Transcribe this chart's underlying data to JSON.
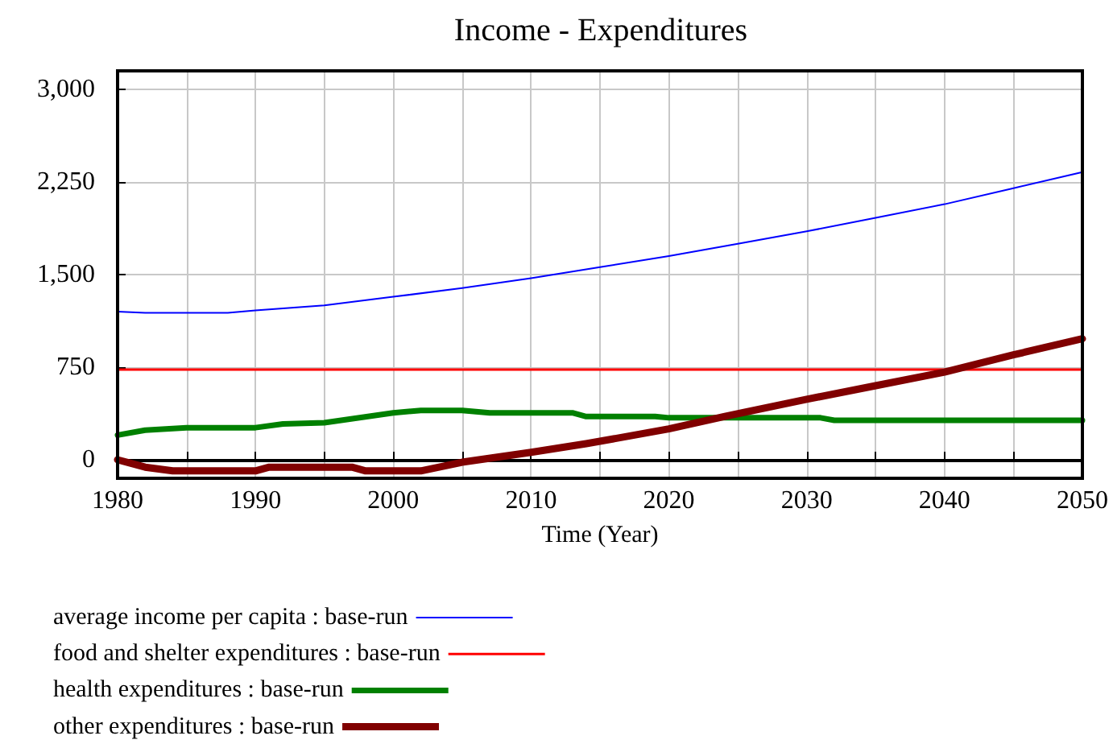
{
  "chart_data": {
    "type": "line",
    "title": "Income - Expenditures",
    "xlabel": "Time (Year)",
    "xlim": [
      1980,
      2050
    ],
    "ylim": [
      -150,
      3150
    ],
    "xticks": [
      1980,
      {
        "value": 1985,
        "label": null
      },
      1990,
      {
        "value": 1995,
        "label": null
      },
      2000,
      {
        "value": 2005,
        "label": null
      },
      2010,
      {
        "value": 2015,
        "label": null
      },
      2020,
      {
        "value": 2025,
        "label": null
      },
      2030,
      {
        "value": 2035,
        "label": null
      },
      2040,
      {
        "value": 2045,
        "label": null
      },
      2050
    ],
    "yticks": [
      0,
      750,
      {
        "value": 1500,
        "label": "1,500"
      },
      {
        "value": 2250,
        "label": "2,250"
      },
      {
        "value": 3000,
        "label": "3,000"
      }
    ],
    "grid": true,
    "legend": "bottom",
    "marker": "none",
    "line_style": "solid",
    "series": [
      {
        "name": "average income per capita : base-run",
        "color": "#0000ff",
        "x": [
          1980,
          1982,
          1985,
          1988,
          1990,
          1995,
          2000,
          2005,
          2010,
          2015,
          2020,
          2025,
          2030,
          2035,
          2040,
          2045,
          2050
        ],
        "values": [
          1200,
          1190,
          1190,
          1190,
          1210,
          1250,
          1320,
          1390,
          1470,
          1560,
          1650,
          1750,
          1850,
          1960,
          2070,
          2200,
          2330
        ]
      },
      {
        "name": "food and shelter expenditures : base-run",
        "color": "#ff0000",
        "x": [
          1980,
          2050
        ],
        "values": [
          730,
          730
        ]
      },
      {
        "name": "health expenditures : base-run",
        "color": "#008000",
        "x": [
          1980,
          1982,
          1985,
          1990,
          1992,
          1995,
          2000,
          2002,
          2005,
          2007,
          2013,
          2014,
          2019,
          2020,
          2031,
          2032,
          2050
        ],
        "values": [
          200,
          240,
          260,
          260,
          290,
          300,
          380,
          400,
          400,
          380,
          380,
          350,
          350,
          340,
          340,
          320,
          320
        ]
      },
      {
        "name": "other expenditures : base-run",
        "color": "#800000",
        "x": [
          1980,
          1982,
          1984,
          1990,
          1991,
          1997,
          1998,
          2002,
          2005,
          2010,
          2014,
          2020,
          2024,
          2030,
          2035,
          2040,
          2045,
          2050
        ],
        "values": [
          0,
          -60,
          -90,
          -90,
          -60,
          -60,
          -90,
          -90,
          -20,
          60,
          130,
          250,
          350,
          490,
          600,
          710,
          850,
          980
        ]
      }
    ]
  }
}
